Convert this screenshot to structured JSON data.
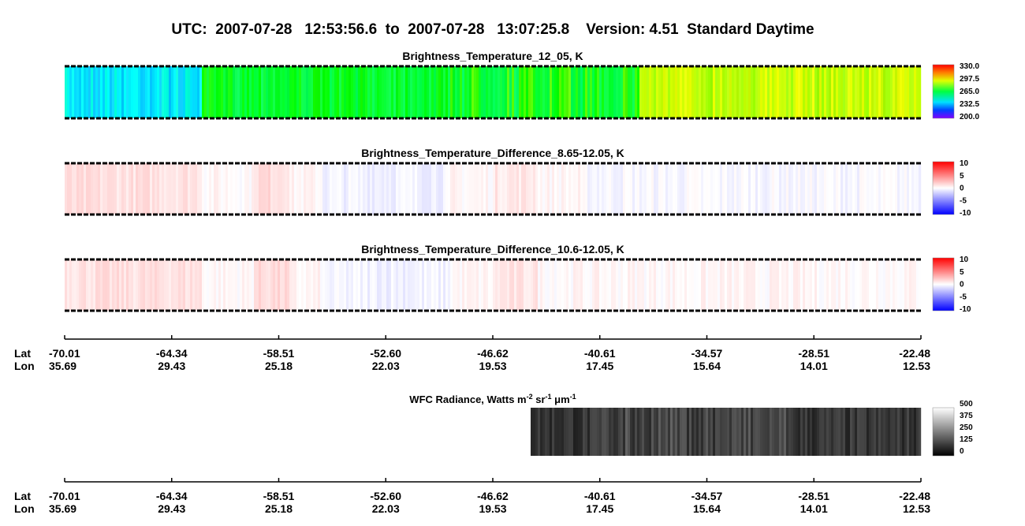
{
  "header": {
    "title": "UTC:  2007-07-28   12:53:56.6  to  2007-07-28   13:07:25.8    Version: 4.51  Standard Daytime"
  },
  "panels": [
    {
      "title": "Brightness_Temperature_12_05, K",
      "colorbar": [
        "330.0",
        "297.5",
        "265.0",
        "232.5",
        "200.0"
      ]
    },
    {
      "title": "Brightness_Temperature_Difference_8.65-12.05, K",
      "colorbar": [
        "10",
        "5",
        "0",
        "-5",
        "-10"
      ]
    },
    {
      "title": "Brightness_Temperature_Difference_10.6-12.05, K",
      "colorbar": [
        "10",
        "5",
        "0",
        "-5",
        "-10"
      ]
    }
  ],
  "axes": [
    {
      "lat_label": "Lat",
      "lon_label": "Lon",
      "lat": [
        "-70.01",
        "-64.34",
        "-58.51",
        "-52.60",
        "-46.62",
        "-40.61",
        "-34.57",
        "-28.51",
        "-22.48"
      ],
      "lon": [
        "35.69",
        "29.43",
        "25.18",
        "22.03",
        "19.53",
        "17.45",
        "15.64",
        "14.01",
        "12.53"
      ]
    },
    {
      "lat_label": "Lat",
      "lon_label": "Lon",
      "lat": [
        "-70.01",
        "-64.34",
        "-58.51",
        "-52.60",
        "-46.62",
        "-40.61",
        "-34.57",
        "-28.51",
        "-22.48"
      ],
      "lon": [
        "35.69",
        "29.43",
        "25.18",
        "22.03",
        "19.53",
        "17.45",
        "15.64",
        "14.01",
        "12.53"
      ]
    }
  ],
  "wfc": {
    "title_parts": [
      "WFC Radiance, Watts m",
      "-2",
      " sr",
      "-1",
      " μm",
      "-1"
    ],
    "colorbar": [
      "500",
      "375",
      "250",
      "125",
      "0"
    ]
  }
}
